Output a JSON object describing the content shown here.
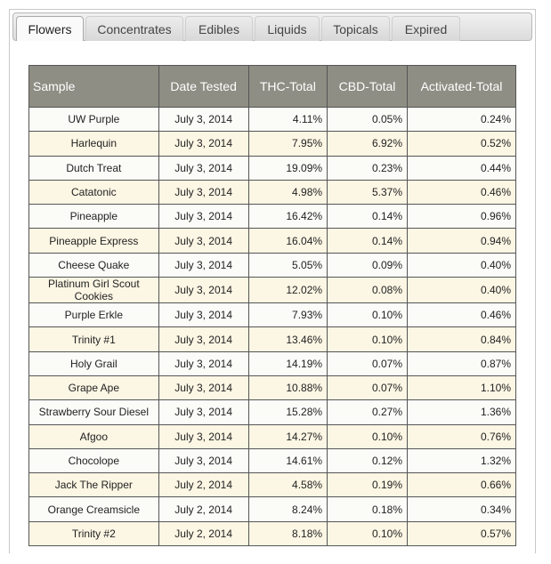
{
  "tabs": [
    "Flowers",
    "Concentrates",
    "Edibles",
    "Liquids",
    "Topicals",
    "Expired"
  ],
  "table": {
    "header": [
      "Sample",
      "Date Tested",
      "THC-Total",
      "CBD-Total",
      "Activated-Total"
    ],
    "rows": [
      [
        "UW Purple",
        "July 3, 2014",
        "4.11%",
        "0.05%",
        "0.24%"
      ],
      [
        "Harlequin",
        "July 3, 2014",
        "7.95%",
        "6.92%",
        "0.52%"
      ],
      [
        "Dutch Treat",
        "July 3, 2014",
        "19.09%",
        "0.23%",
        "0.44%"
      ],
      [
        "Catatonic",
        "July 3, 2014",
        "4.98%",
        "5.37%",
        "0.46%"
      ],
      [
        "Pineapple",
        "July 3, 2014",
        "16.42%",
        "0.14%",
        "0.96%"
      ],
      [
        "Pineapple Express",
        "July 3, 2014",
        "16.04%",
        "0.14%",
        "0.94%"
      ],
      [
        "Cheese Quake",
        "July 3, 2014",
        "5.05%",
        "0.09%",
        "0.40%"
      ],
      [
        "Platinum Girl Scout Cookies",
        "July 3, 2014",
        "12.02%",
        "0.08%",
        "0.40%"
      ],
      [
        "Purple Erkle",
        "July 3, 2014",
        "7.93%",
        "0.10%",
        "0.46%"
      ],
      [
        "Trinity #1",
        "July 3, 2014",
        "13.46%",
        "0.10%",
        "0.84%"
      ],
      [
        "Holy Grail",
        "July 3, 2014",
        "14.19%",
        "0.07%",
        "0.87%"
      ],
      [
        "Grape Ape",
        "July 3, 2014",
        "10.88%",
        "0.07%",
        "1.10%"
      ],
      [
        "Strawberry Sour Diesel",
        "July 3, 2014",
        "15.28%",
        "0.27%",
        "1.36%"
      ],
      [
        "Afgoo",
        "July 3, 2014",
        "14.27%",
        "0.10%",
        "0.76%"
      ],
      [
        "Chocolope",
        "July 3, 2014",
        "14.61%",
        "0.12%",
        "1.32%"
      ],
      [
        "Jack The Ripper",
        "July 2, 2014",
        "4.58%",
        "0.19%",
        "0.66%"
      ],
      [
        "Orange Creamsicle",
        "July 2, 2014",
        "8.24%",
        "0.18%",
        "0.34%"
      ],
      [
        "Trinity #2",
        "July 2, 2014",
        "8.18%",
        "0.10%",
        "0.57%"
      ]
    ]
  }
}
